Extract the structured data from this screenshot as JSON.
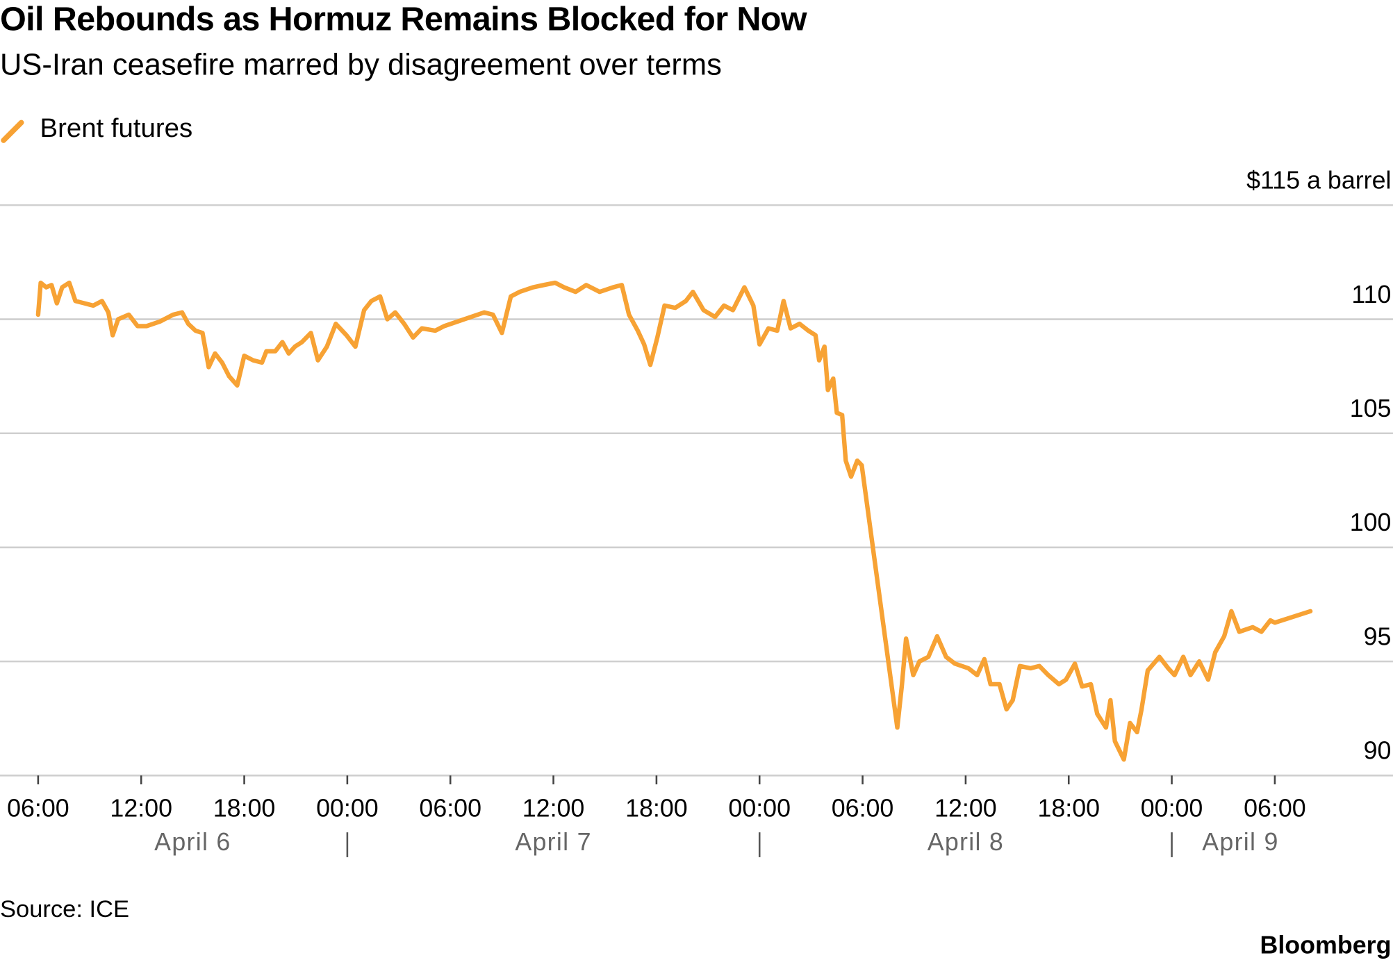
{
  "chart_data": {
    "type": "line",
    "title": "Oil Rebounds as Hormuz Remains Blocked for Now",
    "subtitle": "US-Iran ceasefire marred by disagreement over terms",
    "source": "Source: ICE",
    "brand": "Bloomberg",
    "grid": true,
    "legend": "top-left",
    "xlim": [
      3.78,
      84.88
    ],
    "ylim": [
      90,
      115
    ],
    "yticks": [
      90,
      95,
      100,
      105,
      110,
      {
        "value": 115,
        "label": "$115 a barrel"
      }
    ],
    "xticks": [
      {
        "value": 6,
        "label": "06:00"
      },
      {
        "value": 12,
        "label": "12:00"
      },
      {
        "value": 18,
        "label": "18:00"
      },
      {
        "value": 24,
        "label": "00:00"
      },
      {
        "value": 30,
        "label": "06:00"
      },
      {
        "value": 36,
        "label": "12:00"
      },
      {
        "value": 42,
        "label": "18:00"
      },
      {
        "value": 48,
        "label": "00:00"
      },
      {
        "value": 54,
        "label": "06:00"
      },
      {
        "value": 60,
        "label": "12:00"
      },
      {
        "value": 66,
        "label": "18:00"
      },
      {
        "value": 72,
        "label": "00:00"
      },
      {
        "value": 78,
        "label": "06:00"
      }
    ],
    "day_labels": [
      {
        "value": 15,
        "label": "April 6"
      },
      {
        "value": 36,
        "label": "April 7"
      },
      {
        "value": 60,
        "label": "April 8"
      },
      {
        "value": 76,
        "label": "April 9"
      }
    ],
    "day_separators": [
      24,
      48,
      72
    ],
    "series": [
      {
        "name": "Brent futures",
        "color": "#f7a234",
        "x": [
          6.0,
          6.15,
          6.47,
          6.78,
          7.09,
          7.4,
          7.81,
          8.17,
          8.69,
          9.21,
          9.72,
          10.09,
          10.34,
          10.66,
          11.28,
          11.79,
          12.31,
          13.09,
          13.86,
          14.38,
          14.74,
          15.16,
          15.57,
          15.93,
          16.3,
          16.71,
          17.12,
          17.59,
          18.0,
          18.52,
          19.03,
          19.29,
          19.81,
          20.22,
          20.59,
          20.95,
          21.36,
          21.88,
          22.29,
          22.81,
          23.33,
          23.95,
          24.47,
          24.98,
          25.4,
          25.91,
          26.33,
          26.79,
          27.31,
          27.83,
          28.34,
          29.12,
          29.64,
          31.97,
          32.48,
          33.0,
          33.52,
          34.03,
          34.81,
          35.43,
          36.1,
          36.62,
          37.29,
          37.91,
          38.69,
          39.47,
          39.98,
          40.4,
          40.91,
          41.28,
          41.64,
          42.05,
          42.47,
          43.09,
          43.71,
          44.12,
          44.74,
          45.41,
          45.93,
          46.45,
          47.12,
          47.64,
          48.0,
          48.52,
          49.03,
          49.4,
          49.81,
          50.33,
          50.84,
          51.26,
          51.47,
          51.78,
          51.98,
          52.29,
          52.5,
          52.81,
          53.02,
          53.33,
          53.69,
          53.95,
          56.02,
          56.28,
          56.53,
          56.95,
          57.31,
          57.83,
          58.34,
          58.86,
          59.38,
          60.16,
          60.67,
          61.09,
          61.45,
          61.97,
          62.38,
          62.74,
          63.16,
          63.78,
          64.29,
          64.81,
          65.43,
          65.84,
          66.36,
          66.78,
          67.29,
          67.66,
          68.17,
          68.43,
          68.69,
          69.21,
          69.57,
          69.98,
          70.24,
          70.6,
          71.28,
          71.79,
          72.16,
          72.67,
          73.09,
          73.6,
          74.12,
          74.53,
          75.05,
          75.47,
          75.93,
          76.71,
          77.22,
          77.74,
          78.0,
          80.07
        ],
        "values": [
          110.2,
          111.6,
          111.4,
          111.5,
          110.7,
          111.4,
          111.6,
          110.8,
          110.7,
          110.6,
          110.8,
          110.3,
          109.3,
          110.0,
          110.2,
          109.7,
          109.7,
          109.9,
          110.2,
          110.3,
          109.8,
          109.5,
          109.4,
          107.9,
          108.5,
          108.1,
          107.5,
          107.1,
          108.4,
          108.2,
          108.1,
          108.6,
          108.6,
          109.0,
          108.5,
          108.8,
          109.0,
          109.4,
          108.2,
          108.8,
          109.8,
          109.3,
          108.8,
          110.4,
          110.8,
          111.0,
          110.0,
          110.3,
          109.8,
          109.2,
          109.6,
          109.5,
          109.7,
          110.3,
          110.2,
          109.4,
          111.0,
          111.2,
          111.4,
          111.5,
          111.6,
          111.4,
          111.2,
          111.5,
          111.2,
          111.4,
          111.5,
          110.2,
          109.5,
          108.9,
          108.0,
          109.2,
          110.6,
          110.5,
          110.8,
          111.2,
          110.4,
          110.1,
          110.6,
          110.4,
          111.4,
          110.6,
          108.9,
          109.6,
          109.5,
          110.8,
          109.6,
          109.8,
          109.5,
          109.3,
          108.2,
          108.8,
          106.9,
          107.4,
          105.9,
          105.8,
          103.8,
          103.1,
          103.8,
          103.6,
          92.1,
          93.9,
          96.0,
          94.4,
          95.0,
          95.2,
          96.1,
          95.2,
          94.9,
          94.7,
          94.4,
          95.1,
          94.0,
          94.0,
          92.9,
          93.3,
          94.8,
          94.7,
          94.8,
          94.4,
          94.0,
          94.2,
          94.9,
          93.9,
          94.0,
          92.7,
          92.1,
          93.3,
          91.5,
          90.7,
          92.3,
          91.9,
          92.9,
          94.6,
          95.2,
          94.7,
          94.4,
          95.2,
          94.4,
          95.0,
          94.2,
          95.4,
          96.1,
          97.2,
          96.3,
          96.5,
          96.3,
          96.8,
          96.7,
          97.2
        ]
      }
    ]
  }
}
